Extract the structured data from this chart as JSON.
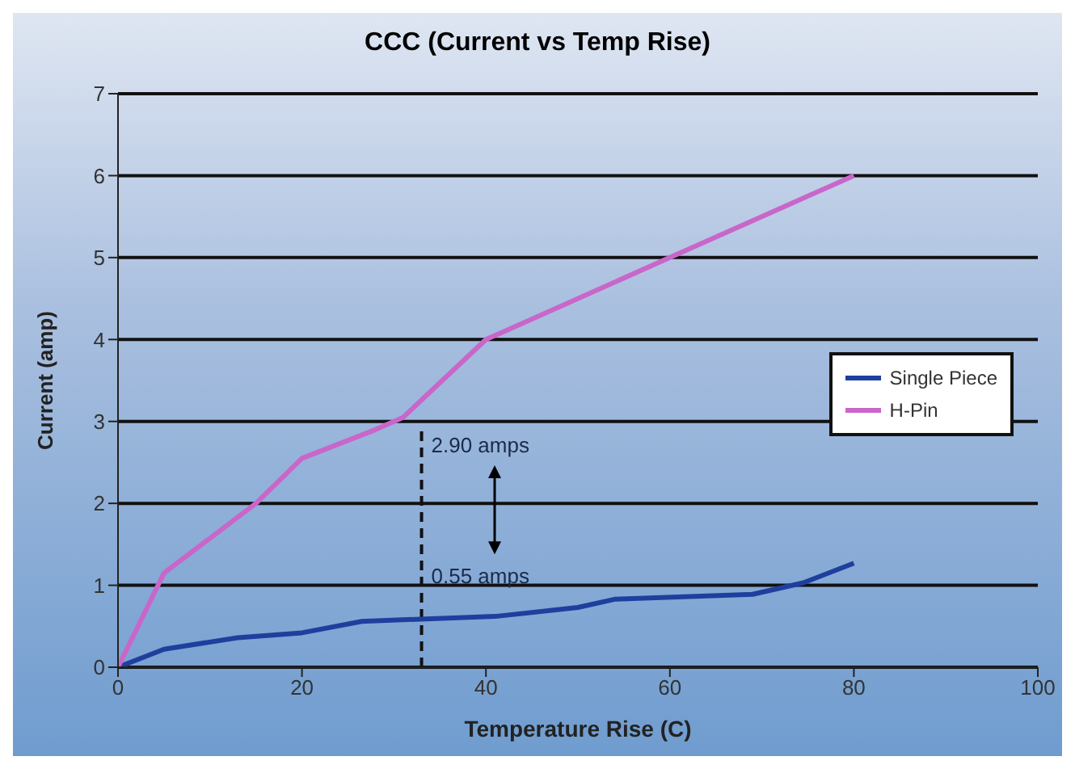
{
  "chart_data": {
    "type": "line",
    "title": "CCC (Current vs Temp Rise)",
    "xlabel": "Temperature Rise (C)",
    "ylabel": "Current (amp)",
    "series": [
      {
        "name": "Single Piece",
        "color": "#1f3f9e",
        "x": [
          0,
          5,
          13,
          20,
          26.5,
          33.5,
          41,
          50,
          54,
          69,
          74.5,
          80
        ],
        "values": [
          0,
          0.22,
          0.36,
          0.42,
          0.56,
          0.59,
          0.62,
          0.73,
          0.83,
          0.89,
          1.03,
          1.27
        ]
      },
      {
        "name": "H-Pin",
        "color": "#c966c9",
        "x": [
          0,
          5,
          15,
          20,
          28,
          31,
          40,
          42,
          60,
          80
        ],
        "values": [
          0,
          1.15,
          2,
          2.55,
          2.9,
          3.05,
          4,
          4.1,
          5,
          6
        ]
      }
    ],
    "xlim": [
      0,
      100
    ],
    "xticks": [
      0,
      20,
      40,
      60,
      80,
      100
    ],
    "ylim": [
      0,
      7
    ],
    "yticks": [
      0,
      1,
      2,
      3,
      4,
      5,
      6,
      7
    ],
    "grid": "y",
    "legend": "right",
    "marker": "none",
    "line_style": "solid",
    "ref_lines": [
      {
        "axis": "x",
        "value": 33,
        "color": "#111111",
        "line_style": "dashed"
      }
    ],
    "annotations": [
      {
        "text": "2.90 amps",
        "x": 33,
        "y": 2.9
      },
      {
        "text": "0.55 amps",
        "x": 33,
        "y": 0.55
      }
    ]
  }
}
